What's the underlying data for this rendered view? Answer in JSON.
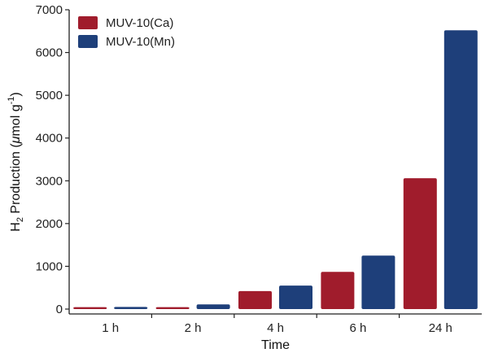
{
  "chart_data": {
    "type": "bar",
    "xlabel": "Time",
    "ylabel": {
      "main": "H",
      "sub": "2",
      "rest": " Production (",
      "mu": "μ",
      "unit": "mol g",
      "sup": "-1",
      "close": ")"
    },
    "categories": [
      "1 h",
      "2 h",
      "4 h",
      "6 h",
      "24 h"
    ],
    "series": [
      {
        "name": "MUV-10(Ca)",
        "color": "#a01c2c",
        "values": [
          45,
          45,
          420,
          870,
          3060
        ]
      },
      {
        "name": "MUV-10(Mn)",
        "color": "#1e3f7a",
        "values": [
          50,
          110,
          550,
          1250,
          6520
        ]
      }
    ],
    "ylim": [
      0,
      7000
    ],
    "yticks": [
      0,
      1000,
      2000,
      3000,
      4000,
      5000,
      6000,
      7000
    ],
    "legend_position": "top-left",
    "grid": false
  }
}
